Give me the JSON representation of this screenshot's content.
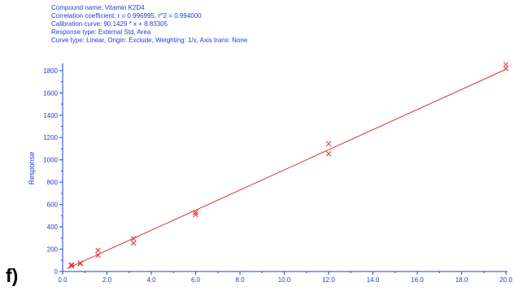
{
  "header": {
    "line1": "Compound name: Vitamin K2D4",
    "line2": "Correlation coefficient: r = 0.996995, r^2 = 0.994000",
    "line3": "Calibration curve: 90.1429 * x + 8.83305",
    "line4": "Response type: External Std, Area",
    "line5": "Curve type: Linear, Origin: Exclude, Weighting: 1/x, Axis trans: None"
  },
  "panel_label": "f)",
  "colors": {
    "header_text": "#1f3fd1",
    "axis_text": "#1f3fd1",
    "axis_line": "#1f3fd1",
    "fit_line": "#e03030",
    "points": "#e03030"
  },
  "chart_data": {
    "type": "scatter",
    "xlabel": "",
    "ylabel": "Response",
    "xlim": [
      0,
      20
    ],
    "ylim": [
      0,
      1850
    ],
    "x_ticks": [
      0.0,
      2.0,
      4.0,
      6.0,
      8.0,
      10.0,
      12.0,
      14.0,
      16.0,
      18.0,
      20.0
    ],
    "x_tick_labels": [
      "0.0",
      "2.0",
      "4.0",
      "6.0",
      "8.0",
      "10.0",
      "12.0",
      "14.0",
      "16.0",
      "18.0",
      "20.0"
    ],
    "y_ticks": [
      0,
      200,
      400,
      600,
      800,
      1000,
      1200,
      1400,
      1600,
      1800
    ],
    "y_tick_labels": [
      "0",
      "200",
      "400",
      "600",
      "800",
      "1000",
      "1200",
      "1400",
      "1600",
      "1800"
    ],
    "grid": false,
    "series": [
      {
        "marker": "x",
        "points": [
          {
            "x": 0.4,
            "y": 50
          },
          {
            "x": 0.4,
            "y": 60
          },
          {
            "x": 0.8,
            "y": 70
          },
          {
            "x": 0.8,
            "y": 75
          },
          {
            "x": 1.6,
            "y": 145
          },
          {
            "x": 1.6,
            "y": 190
          },
          {
            "x": 3.2,
            "y": 255
          },
          {
            "x": 3.2,
            "y": 295
          },
          {
            "x": 6.0,
            "y": 510
          },
          {
            "x": 6.0,
            "y": 530
          },
          {
            "x": 12.0,
            "y": 1055
          },
          {
            "x": 12.0,
            "y": 1145
          },
          {
            "x": 20.0,
            "y": 1820
          },
          {
            "x": 20.0,
            "y": 1855
          }
        ]
      }
    ],
    "fit_line": {
      "slope": 90.1429,
      "intercept": 8.83305
    }
  }
}
